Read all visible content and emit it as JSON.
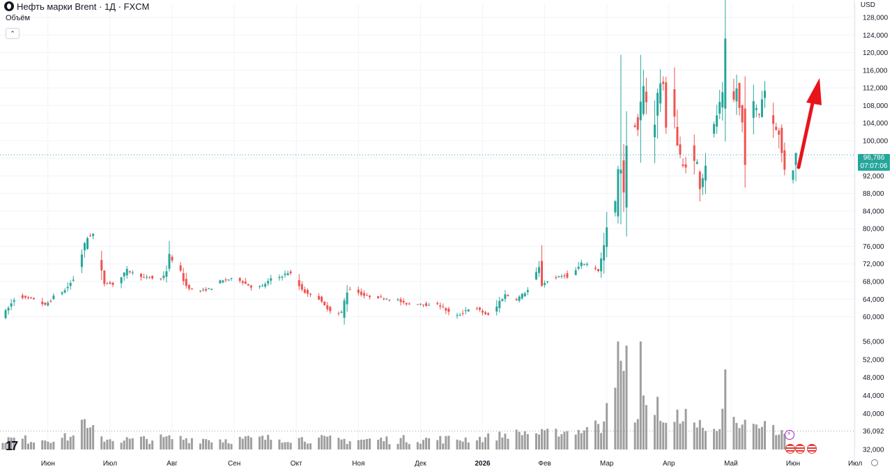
{
  "header": {
    "title": "Нефть марки Brent · 1Д · FXCM",
    "volume_label": "Объём",
    "collapse_glyph": "⌃",
    "currency": "USD",
    "logo_text": "17"
  },
  "price_badge": {
    "price": "96,786",
    "countdown": "07:07:06"
  },
  "colors": {
    "up": "#26a69a",
    "down": "#ef5350",
    "volume": "#9e9e9e",
    "arrow": "#e8141c",
    "grid": "#f0f3fa",
    "axis_text": "#131722"
  },
  "chart_data": {
    "type": "candlestick",
    "title": "Нефть марки Brent",
    "interval": "1Д",
    "source": "FXCM",
    "price_axis": {
      "ticks": [
        "128,000",
        "124,000",
        "120,000",
        "116,000",
        "112,000",
        "108,000",
        "104,000",
        "100,000",
        "96,000",
        "92,000",
        "88,000",
        "84,000",
        "80,000",
        "76,000",
        "72,000",
        "68,000",
        "64,000",
        "60,000"
      ],
      "tick_values": [
        128,
        124,
        120,
        116,
        112,
        108,
        104,
        100,
        96,
        92,
        88,
        84,
        80,
        76,
        72,
        68,
        64,
        60
      ],
      "range": [
        58.5,
        128
      ]
    },
    "volume_axis": {
      "ticks": [
        "56,000",
        "52,000",
        "48,000",
        "44,000",
        "40,000",
        "36,092",
        "32,000"
      ],
      "tick_values": [
        56,
        52,
        48,
        44,
        40,
        36.092,
        32
      ],
      "range": [
        32,
        56
      ]
    },
    "time_axis": {
      "labels": [
        "Июн",
        "Июл",
        "Авг",
        "Сен",
        "Окт",
        "Ноя",
        "Дек",
        "2026",
        "Фев",
        "Мар",
        "Апр",
        "Май",
        "Июн",
        "Июл"
      ],
      "label_days": [
        16,
        38,
        60,
        82,
        104,
        126,
        148,
        170,
        192,
        214,
        236,
        258,
        280,
        302
      ]
    },
    "last_price": 96.786,
    "current_volume": 36.092,
    "anchors": [
      [
        0,
        60.3
      ],
      [
        2,
        62
      ],
      [
        5,
        65
      ],
      [
        8,
        64.2
      ],
      [
        12,
        64
      ],
      [
        15,
        62.5
      ],
      [
        18,
        64.5
      ],
      [
        22,
        66
      ],
      [
        25,
        68.5
      ],
      [
        27,
        71
      ],
      [
        28,
        74.5
      ],
      [
        30,
        78
      ],
      [
        32,
        78.8
      ],
      [
        33,
        79
      ],
      [
        34,
        72
      ],
      [
        36,
        67.8
      ],
      [
        38,
        67.5
      ],
      [
        40,
        67.2
      ],
      [
        42,
        69
      ],
      [
        44,
        70.5
      ],
      [
        46,
        70
      ],
      [
        48,
        69.8
      ],
      [
        50,
        68.8
      ],
      [
        52,
        69
      ],
      [
        54,
        68.5
      ],
      [
        56,
        68.5
      ],
      [
        58,
        70.5
      ],
      [
        59,
        73.5
      ],
      [
        61,
        72.5
      ],
      [
        63,
        70
      ],
      [
        65,
        67
      ],
      [
        68,
        65.8
      ],
      [
        71,
        66
      ],
      [
        74,
        66.5
      ],
      [
        77,
        68
      ],
      [
        80,
        68.5
      ],
      [
        83,
        68.8
      ],
      [
        86,
        67.5
      ],
      [
        89,
        66.5
      ],
      [
        92,
        67
      ],
      [
        95,
        68.5
      ],
      [
        98,
        69
      ],
      [
        101,
        70
      ],
      [
        103,
        69.5
      ],
      [
        105,
        67
      ],
      [
        108,
        65
      ],
      [
        111,
        65.5
      ],
      [
        113,
        63
      ],
      [
        116,
        61.5
      ],
      [
        118,
        60.5
      ],
      [
        120,
        61
      ],
      [
        122,
        66
      ],
      [
        124,
        66.5
      ],
      [
        126,
        65.5
      ],
      [
        128,
        64.8
      ],
      [
        131,
        64.5
      ],
      [
        134,
        64.3
      ],
      [
        137,
        64
      ],
      [
        140,
        63.8
      ],
      [
        142,
        63
      ],
      [
        145,
        62.8
      ],
      [
        148,
        63
      ],
      [
        151,
        62.5
      ],
      [
        154,
        63
      ],
      [
        156,
        62
      ],
      [
        158,
        61
      ],
      [
        160,
        60
      ],
      [
        162,
        60.5
      ],
      [
        164,
        61.5
      ],
      [
        166,
        62
      ],
      [
        168,
        61.8
      ],
      [
        170,
        61
      ],
      [
        172,
        60.3
      ],
      [
        174,
        61
      ],
      [
        176,
        63.5
      ],
      [
        178,
        65
      ],
      [
        180,
        64.5
      ],
      [
        182,
        64
      ],
      [
        184,
        65
      ],
      [
        186,
        66
      ],
      [
        188,
        68.5
      ],
      [
        190,
        71
      ],
      [
        191,
        67.5
      ],
      [
        193,
        68
      ],
      [
        195,
        68.8
      ],
      [
        197,
        69
      ],
      [
        199,
        69.5
      ],
      [
        201,
        68
      ],
      [
        203,
        70.5
      ],
      [
        205,
        72
      ],
      [
        207,
        72
      ],
      [
        209,
        71.5
      ],
      [
        211,
        70.5
      ],
      [
        212,
        73
      ],
      [
        213,
        76
      ],
      [
        214,
        79.5
      ],
      [
        215,
        82
      ],
      [
        216,
        84
      ],
      [
        217,
        86
      ],
      [
        218,
        92
      ],
      [
        219,
        94
      ],
      [
        220,
        89
      ],
      [
        221,
        97
      ],
      [
        222,
        100
      ],
      [
        223,
        102
      ],
      [
        224,
        104
      ],
      [
        225,
        102.5
      ],
      [
        226,
        108
      ],
      [
        227,
        112
      ],
      [
        228,
        109
      ],
      [
        229,
        103
      ],
      [
        230,
        100
      ],
      [
        231,
        105
      ],
      [
        232,
        110
      ],
      [
        233,
        113.5
      ],
      [
        234,
        112
      ],
      [
        235,
        105
      ],
      [
        236,
        108
      ],
      [
        237,
        110
      ],
      [
        238,
        106
      ],
      [
        239,
        99
      ],
      [
        240,
        96
      ],
      [
        241,
        94
      ],
      [
        242,
        94.5
      ],
      [
        243,
        95.5
      ],
      [
        244,
        97.5
      ],
      [
        245,
        95
      ],
      [
        246,
        95
      ],
      [
        247,
        90.5
      ],
      [
        248,
        92
      ],
      [
        249,
        95
      ],
      [
        250,
        98
      ],
      [
        251,
        101
      ],
      [
        252,
        103
      ],
      [
        253,
        106
      ],
      [
        254,
        108
      ],
      [
        255,
        110
      ],
      [
        256,
        120
      ],
      [
        257,
        114
      ],
      [
        258,
        111
      ],
      [
        259,
        109
      ],
      [
        260,
        112
      ],
      [
        261,
        107
      ],
      [
        262,
        104
      ],
      [
        263,
        97
      ],
      [
        264,
        100
      ],
      [
        265,
        105
      ],
      [
        266,
        108
      ],
      [
        267,
        107
      ],
      [
        268,
        106
      ],
      [
        269,
        110
      ],
      [
        270,
        111.5
      ],
      [
        271,
        109
      ],
      [
        272,
        108
      ],
      [
        273,
        104
      ],
      [
        274,
        103
      ],
      [
        275,
        101
      ],
      [
        276,
        97
      ],
      [
        277,
        94
      ],
      [
        278,
        92
      ],
      [
        279,
        91.5
      ],
      [
        280,
        94
      ],
      [
        281,
        96.786
      ]
    ],
    "volume_anchors": [
      [
        0,
        34.3
      ],
      [
        10,
        34.2
      ],
      [
        20,
        34.5
      ],
      [
        27,
        35
      ],
      [
        28,
        39.5
      ],
      [
        29,
        37.8
      ],
      [
        30,
        36.4
      ],
      [
        33,
        36.5
      ],
      [
        34,
        37.5
      ],
      [
        35,
        34.5
      ],
      [
        45,
        34.1
      ],
      [
        60,
        34.5
      ],
      [
        80,
        34.2
      ],
      [
        100,
        34.5
      ],
      [
        120,
        34.1
      ],
      [
        140,
        34.2
      ],
      [
        160,
        34.3
      ],
      [
        170,
        34.5
      ],
      [
        175,
        35
      ],
      [
        178,
        35.3
      ],
      [
        185,
        35.8
      ],
      [
        190,
        35.5
      ],
      [
        200,
        36
      ],
      [
        205,
        36.2
      ],
      [
        208,
        37
      ],
      [
        211,
        38
      ],
      [
        212,
        36.5
      ],
      [
        213,
        39
      ],
      [
        214,
        43
      ],
      [
        215,
        41
      ],
      [
        216,
        42.5
      ],
      [
        217,
        47
      ],
      [
        218,
        55.5
      ],
      [
        219,
        51
      ],
      [
        220,
        49
      ],
      [
        221,
        54
      ],
      [
        222,
        44
      ],
      [
        223,
        40
      ],
      [
        224,
        39
      ],
      [
        225,
        38.5
      ],
      [
        226,
        56
      ],
      [
        227,
        45
      ],
      [
        228,
        42
      ],
      [
        229,
        39
      ],
      [
        230,
        44
      ],
      [
        231,
        40
      ],
      [
        232,
        43
      ],
      [
        233,
        38
      ],
      [
        234,
        37
      ],
      [
        235,
        39
      ],
      [
        236,
        47
      ],
      [
        237,
        44
      ],
      [
        238,
        39
      ],
      [
        239,
        40
      ],
      [
        240,
        37
      ],
      [
        241,
        38
      ],
      [
        242,
        42
      ],
      [
        243,
        47
      ],
      [
        244,
        39
      ],
      [
        245,
        38
      ],
      [
        246,
        37
      ],
      [
        247,
        38
      ],
      [
        248,
        36.5
      ],
      [
        250,
        36.8
      ],
      [
        251,
        39.6
      ],
      [
        252,
        37.5
      ],
      [
        253,
        37
      ],
      [
        254,
        36.7
      ],
      [
        255,
        40
      ],
      [
        256,
        49.3
      ],
      [
        257,
        38
      ],
      [
        258,
        37
      ],
      [
        259,
        38.5
      ],
      [
        260,
        37
      ],
      [
        261,
        36
      ],
      [
        262,
        37
      ],
      [
        263,
        39
      ],
      [
        264,
        36
      ],
      [
        265,
        36.4
      ],
      [
        266,
        37.3
      ],
      [
        267,
        37
      ],
      [
        268,
        36.2
      ],
      [
        269,
        37
      ],
      [
        270,
        38
      ],
      [
        271,
        36
      ],
      [
        272,
        36.5
      ],
      [
        273,
        37
      ],
      [
        274,
        35
      ],
      [
        275,
        36
      ],
      [
        276,
        35.5
      ],
      [
        277,
        35
      ],
      [
        278,
        34.5
      ],
      [
        279,
        36.092
      ]
    ],
    "spikes": [
      {
        "day": 219,
        "high": 119.5,
        "low": 81
      },
      {
        "day": 226,
        "high": 119.5,
        "low": 95
      }
    ],
    "annotation": {
      "type": "arrow",
      "color": "red",
      "direction": "up"
    }
  }
}
